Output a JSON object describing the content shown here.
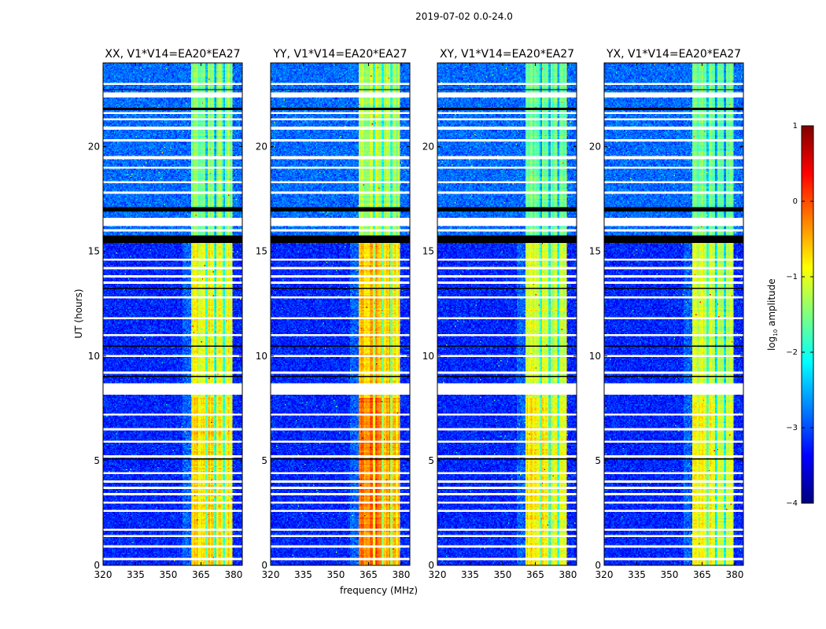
{
  "chart_data": {
    "type": "heatmap",
    "title": "2019-07-02 0.0-24.0",
    "xlabel": "frequency (MHz)",
    "ylabel": "UT (hours)",
    "xlim": [
      320,
      384
    ],
    "ylim": [
      0,
      24
    ],
    "xticks": [
      320,
      335,
      350,
      365,
      380
    ],
    "yticks": [
      0,
      5,
      10,
      15,
      20
    ],
    "panels": [
      {
        "title": "XX, V1*V14=EA20*EA27",
        "band_level": -1.2,
        "early_boost": 0.5
      },
      {
        "title": "YY, V1*V14=EA20*EA27",
        "band_level": -1.0,
        "early_boost": 0.8
      },
      {
        "title": "XY, V1*V14=EA20*EA27",
        "band_level": -1.3,
        "early_boost": 0.5
      },
      {
        "title": "YX, V1*V14=EA20*EA27",
        "band_level": -1.3,
        "early_boost": 0.4
      }
    ],
    "band_mhz": [
      360.5,
      379.5
    ],
    "band_dips_mhz": [
      367.5,
      371.5,
      375.5
    ],
    "background_level": -3.2,
    "flagged_white_hours": [
      [
        8.15,
        8.7
      ],
      [
        16.2,
        16.6
      ],
      [
        22.35,
        22.6
      ],
      [
        20.8,
        20.95
      ],
      [
        19.4,
        19.55
      ],
      [
        15.95,
        16.05
      ]
    ],
    "flagged_white_lines_hours": [
      0.3,
      0.9,
      1.4,
      1.7,
      2.6,
      3.0,
      3.4,
      3.7,
      4.0,
      4.4,
      5.2,
      5.9,
      6.5,
      7.2,
      9.2,
      10.0,
      11.0,
      11.8,
      12.8,
      13.5,
      13.8,
      14.2,
      14.6,
      17.8,
      18.3,
      19.0,
      20.3,
      21.3,
      21.6,
      23.0
    ],
    "flagged_black_hours": [
      [
        15.4,
        15.75
      ],
      [
        16.9,
        17.1
      ],
      [
        21.75,
        21.85
      ],
      [
        5.05,
        5.12
      ],
      [
        10.45,
        10.52
      ],
      [
        13.2,
        13.26
      ],
      [
        9.0,
        9.05
      ],
      [
        22.7,
        22.75
      ]
    ],
    "colorbar": {
      "label": "log10 amplitude",
      "label_main": "log",
      "label_sub": "10",
      "label_rest": " amplitude",
      "range": [
        -4,
        1
      ],
      "ticks": [
        1,
        0,
        -1,
        -2,
        -3,
        -4
      ],
      "tick_labels": [
        "1",
        "0",
        "−1",
        "−2",
        "−3",
        "−4"
      ],
      "colormap": "jet"
    }
  }
}
